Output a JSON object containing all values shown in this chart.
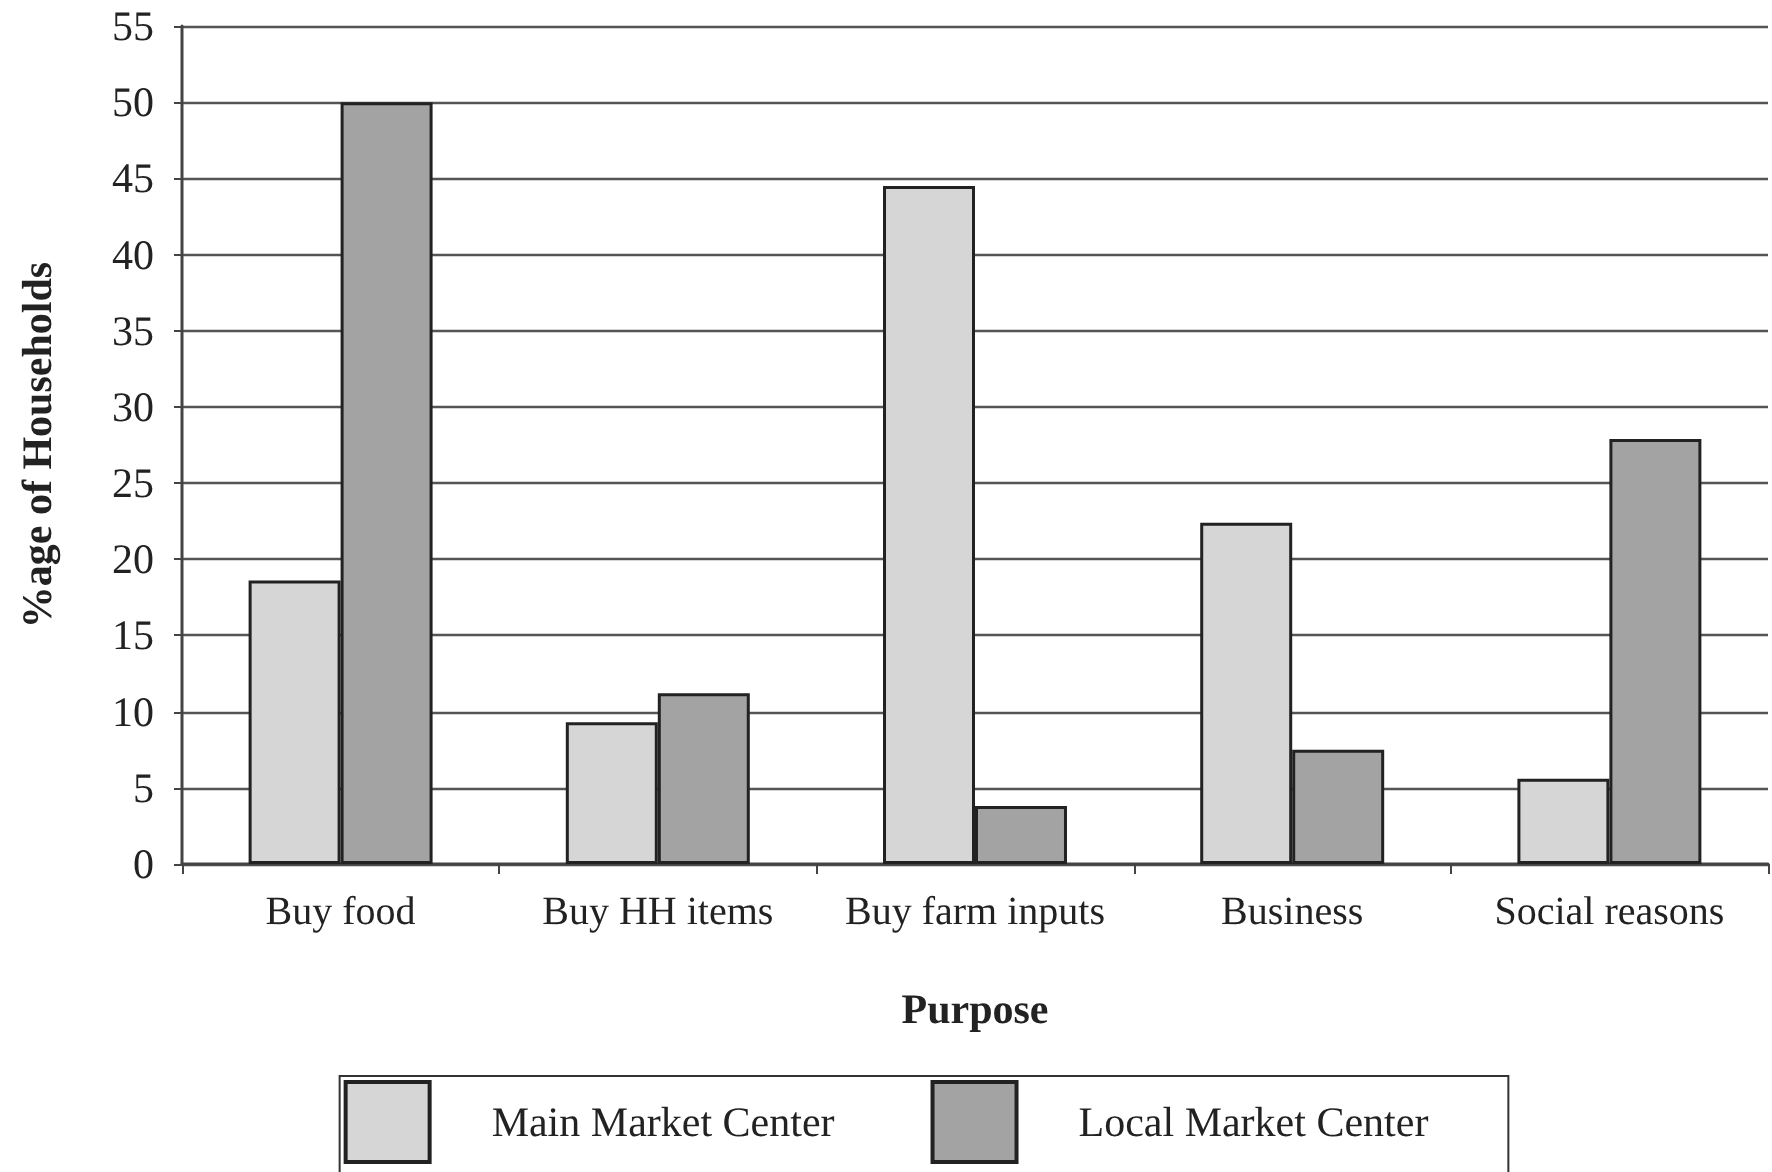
{
  "chart_data": {
    "type": "bar",
    "xlabel": "Purpose",
    "ylabel": "%age of Households",
    "categories": [
      "Buy food",
      "Buy HH items",
      "Buy farm inputs",
      "Business",
      "Social reasons"
    ],
    "series": [
      {
        "name": "Main Market Center",
        "color": "#d6d6d6",
        "values": [
          18.6,
          9.3,
          44.5,
          22.4,
          5.6
        ]
      },
      {
        "name": "Local Market Center",
        "color": "#a3a3a3",
        "values": [
          50,
          11.2,
          3.8,
          7.5,
          27.9
        ]
      }
    ],
    "ylim": [
      0,
      55
    ],
    "yticks": [
      0,
      5,
      10,
      15,
      20,
      25,
      30,
      35,
      40,
      45,
      50,
      55
    ],
    "grid": "y",
    "legend": "bottom"
  }
}
